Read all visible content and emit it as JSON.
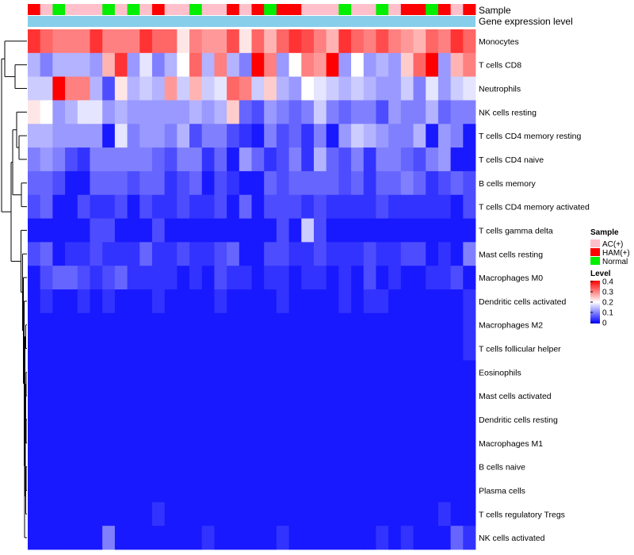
{
  "chart_data": {
    "type": "heatmap",
    "title": "",
    "annotation_tracks": [
      "Sample",
      "Gene expression level"
    ],
    "rows": [
      "Monocytes",
      "T cells CD8",
      "Neutrophils",
      "NK cells resting",
      "T cells CD4 memory resting",
      "T cells CD4 naive",
      "B cells memory",
      "T cells CD4 memory activated",
      "T cells gamma delta",
      "Mast cells resting",
      "Macrophages M0",
      "Dendritic cells activated",
      "Macrophages M2",
      "T cells follicular helper",
      "Eosinophils",
      "Mast cells activated",
      "Dendritic cells resting",
      "Macrophages M1",
      "B cells naive",
      "Plasma cells",
      "T cells regulatory  Tregs",
      "NK cells activated"
    ],
    "sample_groups": [
      "HAM(+)",
      "AC(+)",
      "Normal",
      "AC(+)",
      "AC(+)",
      "AC(+)",
      "Normal",
      "AC(+)",
      "Normal",
      "AC(+)",
      "HAM(+)",
      "AC(+)",
      "AC(+)",
      "Normal",
      "AC(+)",
      "AC(+)",
      "HAM(+)",
      "AC(+)",
      "HAM(+)",
      "Normal",
      "HAM(+)",
      "HAM(+)",
      "AC(+)",
      "AC(+)",
      "AC(+)",
      "Normal",
      "AC(+)",
      "AC(+)",
      "Normal",
      "AC(+)",
      "HAM(+)",
      "HAM(+)",
      "Normal",
      "HAM(+)",
      "AC(+)",
      "HAM(+)"
    ],
    "values": [
      [
        0.36,
        0.32,
        0.3,
        0.3,
        0.3,
        0.36,
        0.3,
        0.3,
        0.3,
        0.36,
        0.32,
        0.32,
        0.22,
        0.3,
        0.28,
        0.28,
        0.34,
        0.22,
        0.32,
        0.26,
        0.32,
        0.36,
        0.34,
        0.3,
        0.26,
        0.36,
        0.32,
        0.3,
        0.34,
        0.3,
        0.28,
        0.26,
        0.32,
        0.3,
        0.36,
        0.32
      ],
      [
        0.14,
        0.1,
        0.14,
        0.14,
        0.14,
        0.12,
        0.26,
        0.36,
        0.12,
        0.18,
        0.1,
        0.14,
        0.2,
        0.32,
        0.14,
        0.3,
        0.14,
        0.1,
        0.4,
        0.3,
        0.12,
        0.2,
        0.3,
        0.28,
        0.4,
        0.12,
        0.2,
        0.12,
        0.14,
        0.12,
        0.24,
        0.32,
        0.4,
        0.12,
        0.26,
        0.3
      ],
      [
        0.16,
        0.16,
        0.4,
        0.3,
        0.3,
        0.14,
        0.06,
        0.22,
        0.14,
        0.16,
        0.14,
        0.28,
        0.16,
        0.26,
        0.16,
        0.18,
        0.32,
        0.3,
        0.16,
        0.24,
        0.14,
        0.12,
        0.2,
        0.18,
        0.16,
        0.14,
        0.16,
        0.14,
        0.12,
        0.12,
        0.16,
        0.1,
        0.18,
        0.12,
        0.16,
        0.18
      ],
      [
        0.22,
        0.2,
        0.12,
        0.14,
        0.18,
        0.18,
        0.12,
        0.14,
        0.12,
        0.12,
        0.12,
        0.12,
        0.12,
        0.14,
        0.12,
        0.14,
        0.24,
        0.08,
        0.06,
        0.12,
        0.1,
        0.08,
        0.1,
        0.16,
        0.1,
        0.08,
        0.1,
        0.1,
        0.06,
        0.12,
        0.1,
        0.1,
        0.14,
        0.08,
        0.1,
        0.1
      ],
      [
        0.14,
        0.14,
        0.12,
        0.12,
        0.12,
        0.12,
        0.02,
        0.18,
        0.1,
        0.12,
        0.12,
        0.1,
        0.14,
        0.06,
        0.1,
        0.1,
        0.06,
        0.04,
        0.02,
        0.1,
        0.06,
        0.08,
        0.04,
        0.1,
        0.02,
        0.12,
        0.16,
        0.14,
        0.12,
        0.1,
        0.1,
        0.14,
        0.02,
        0.12,
        0.1,
        0.02
      ],
      [
        0.1,
        0.12,
        0.1,
        0.06,
        0.04,
        0.1,
        0.1,
        0.1,
        0.1,
        0.1,
        0.08,
        0.06,
        0.1,
        0.1,
        0.04,
        0.08,
        0.02,
        0.12,
        0.08,
        0.04,
        0.06,
        0.1,
        0.04,
        0.14,
        0.08,
        0.06,
        0.1,
        0.04,
        0.1,
        0.1,
        0.08,
        0.06,
        0.1,
        0.12,
        0.02,
        0.02
      ],
      [
        0.08,
        0.08,
        0.06,
        0.02,
        0.02,
        0.08,
        0.08,
        0.08,
        0.06,
        0.08,
        0.08,
        0.04,
        0.06,
        0.08,
        0.02,
        0.06,
        0.04,
        0.02,
        0.02,
        0.08,
        0.06,
        0.08,
        0.08,
        0.08,
        0.08,
        0.06,
        0.08,
        0.04,
        0.08,
        0.08,
        0.1,
        0.08,
        0.04,
        0.06,
        0.08,
        0.06
      ],
      [
        0.06,
        0.08,
        0.02,
        0.02,
        0.06,
        0.04,
        0.04,
        0.06,
        0.02,
        0.06,
        0.04,
        0.04,
        0.06,
        0.04,
        0.04,
        0.06,
        0.02,
        0.08,
        0.02,
        0.06,
        0.06,
        0.06,
        0.04,
        0.06,
        0.04,
        0.04,
        0.04,
        0.04,
        0.06,
        0.04,
        0.04,
        0.04,
        0.04,
        0.04,
        0.02,
        0.06
      ],
      [
        0.02,
        0.02,
        0.02,
        0.02,
        0.02,
        0.06,
        0.06,
        0.02,
        0.02,
        0.02,
        0.06,
        0.02,
        0.02,
        0.02,
        0.02,
        0.02,
        0.02,
        0.02,
        0.02,
        0.02,
        0.06,
        0.02,
        0.16,
        0.06,
        0.02,
        0.02,
        0.02,
        0.02,
        0.02,
        0.02,
        0.02,
        0.02,
        0.02,
        0.02,
        0.02,
        0.02
      ],
      [
        0.06,
        0.08,
        0.02,
        0.04,
        0.04,
        0.06,
        0.04,
        0.04,
        0.04,
        0.08,
        0.04,
        0.04,
        0.06,
        0.04,
        0.04,
        0.06,
        0.08,
        0.02,
        0.02,
        0.06,
        0.06,
        0.04,
        0.04,
        0.06,
        0.04,
        0.04,
        0.04,
        0.06,
        0.04,
        0.04,
        0.06,
        0.06,
        0.02,
        0.04,
        0.02,
        0.1
      ],
      [
        0.02,
        0.06,
        0.08,
        0.08,
        0.06,
        0.04,
        0.06,
        0.08,
        0.04,
        0.04,
        0.04,
        0.04,
        0.02,
        0.04,
        0.02,
        0.06,
        0.04,
        0.04,
        0.02,
        0.04,
        0.04,
        0.02,
        0.04,
        0.04,
        0.02,
        0.04,
        0.02,
        0.06,
        0.02,
        0.04,
        0.02,
        0.02,
        0.04,
        0.04,
        0.06,
        0.02
      ],
      [
        0.02,
        0.04,
        0.02,
        0.02,
        0.04,
        0.02,
        0.04,
        0.02,
        0.02,
        0.02,
        0.04,
        0.02,
        0.02,
        0.02,
        0.02,
        0.04,
        0.02,
        0.02,
        0.02,
        0.02,
        0.04,
        0.02,
        0.02,
        0.02,
        0.02,
        0.04,
        0.02,
        0.04,
        0.04,
        0.02,
        0.02,
        0.02,
        0.02,
        0.02,
        0.02,
        0.04
      ],
      [
        0.02,
        0.02,
        0.02,
        0.02,
        0.02,
        0.02,
        0.02,
        0.02,
        0.02,
        0.02,
        0.02,
        0.02,
        0.02,
        0.02,
        0.02,
        0.02,
        0.02,
        0.02,
        0.02,
        0.02,
        0.02,
        0.02,
        0.02,
        0.02,
        0.02,
        0.02,
        0.02,
        0.02,
        0.02,
        0.02,
        0.02,
        0.02,
        0.02,
        0.02,
        0.02,
        0.04
      ],
      [
        0.02,
        0.02,
        0.02,
        0.02,
        0.02,
        0.02,
        0.02,
        0.02,
        0.02,
        0.02,
        0.02,
        0.02,
        0.02,
        0.02,
        0.02,
        0.02,
        0.02,
        0.02,
        0.02,
        0.02,
        0.02,
        0.02,
        0.02,
        0.02,
        0.02,
        0.02,
        0.02,
        0.02,
        0.02,
        0.02,
        0.02,
        0.02,
        0.02,
        0.02,
        0.02,
        0.04
      ],
      [
        0.02,
        0.02,
        0.02,
        0.02,
        0.02,
        0.02,
        0.02,
        0.02,
        0.02,
        0.02,
        0.02,
        0.02,
        0.02,
        0.02,
        0.02,
        0.02,
        0.02,
        0.02,
        0.02,
        0.02,
        0.02,
        0.02,
        0.02,
        0.02,
        0.02,
        0.02,
        0.02,
        0.02,
        0.02,
        0.02,
        0.02,
        0.02,
        0.02,
        0.02,
        0.02,
        0.02
      ],
      [
        0.02,
        0.02,
        0.02,
        0.02,
        0.02,
        0.02,
        0.02,
        0.02,
        0.02,
        0.02,
        0.02,
        0.02,
        0.02,
        0.02,
        0.02,
        0.02,
        0.02,
        0.02,
        0.02,
        0.02,
        0.02,
        0.02,
        0.02,
        0.02,
        0.02,
        0.02,
        0.02,
        0.02,
        0.02,
        0.02,
        0.02,
        0.02,
        0.02,
        0.02,
        0.02,
        0.02
      ],
      [
        0.02,
        0.02,
        0.02,
        0.02,
        0.02,
        0.02,
        0.02,
        0.02,
        0.02,
        0.02,
        0.02,
        0.02,
        0.02,
        0.02,
        0.02,
        0.02,
        0.02,
        0.02,
        0.02,
        0.02,
        0.02,
        0.02,
        0.02,
        0.02,
        0.02,
        0.02,
        0.02,
        0.02,
        0.02,
        0.02,
        0.02,
        0.02,
        0.02,
        0.02,
        0.02,
        0.02
      ],
      [
        0.02,
        0.02,
        0.02,
        0.02,
        0.02,
        0.02,
        0.02,
        0.02,
        0.02,
        0.02,
        0.02,
        0.02,
        0.02,
        0.02,
        0.02,
        0.02,
        0.02,
        0.02,
        0.02,
        0.02,
        0.02,
        0.02,
        0.02,
        0.02,
        0.02,
        0.02,
        0.02,
        0.02,
        0.02,
        0.02,
        0.02,
        0.02,
        0.02,
        0.02,
        0.02,
        0.02
      ],
      [
        0.02,
        0.02,
        0.02,
        0.02,
        0.02,
        0.02,
        0.02,
        0.02,
        0.02,
        0.02,
        0.02,
        0.02,
        0.02,
        0.02,
        0.02,
        0.02,
        0.02,
        0.02,
        0.02,
        0.02,
        0.02,
        0.02,
        0.02,
        0.02,
        0.02,
        0.02,
        0.02,
        0.02,
        0.02,
        0.02,
        0.02,
        0.02,
        0.02,
        0.02,
        0.02,
        0.02
      ],
      [
        0.02,
        0.02,
        0.02,
        0.02,
        0.02,
        0.02,
        0.02,
        0.02,
        0.02,
        0.02,
        0.02,
        0.02,
        0.02,
        0.02,
        0.02,
        0.02,
        0.02,
        0.02,
        0.02,
        0.02,
        0.02,
        0.02,
        0.02,
        0.02,
        0.02,
        0.02,
        0.02,
        0.02,
        0.02,
        0.02,
        0.02,
        0.02,
        0.02,
        0.02,
        0.02,
        0.02
      ],
      [
        0.02,
        0.02,
        0.02,
        0.02,
        0.02,
        0.02,
        0.02,
        0.02,
        0.02,
        0.02,
        0.04,
        0.02,
        0.02,
        0.02,
        0.02,
        0.02,
        0.02,
        0.02,
        0.02,
        0.02,
        0.02,
        0.02,
        0.02,
        0.02,
        0.02,
        0.02,
        0.02,
        0.02,
        0.02,
        0.02,
        0.02,
        0.02,
        0.02,
        0.04,
        0.02,
        0.02
      ],
      [
        0.02,
        0.02,
        0.02,
        0.02,
        0.02,
        0.02,
        0.1,
        0.02,
        0.02,
        0.02,
        0.02,
        0.02,
        0.02,
        0.02,
        0.04,
        0.02,
        0.02,
        0.02,
        0.02,
        0.02,
        0.04,
        0.02,
        0.02,
        0.02,
        0.02,
        0.02,
        0.02,
        0.02,
        0.04,
        0.02,
        0.04,
        0.02,
        0.02,
        0.02,
        0.08,
        0.04
      ]
    ],
    "colorscale": {
      "min": 0,
      "max": 0.4,
      "ticks": [
        "0.4",
        "0.3",
        "0.2",
        "0.1",
        "0"
      ],
      "low": "#0000ff",
      "mid": "#ffffff",
      "high": "#ff0000"
    },
    "legend": {
      "sample_title": "Sample",
      "level_title": "Level",
      "position": "right",
      "groups": [
        {
          "name": "AC(+)",
          "color": "#ffc0cb"
        },
        {
          "name": "HAM(+)",
          "color": "#ff0000"
        },
        {
          "name": "Normal",
          "color": "#00ee00"
        }
      ]
    },
    "expression_bar_color": "#87ceeb"
  }
}
